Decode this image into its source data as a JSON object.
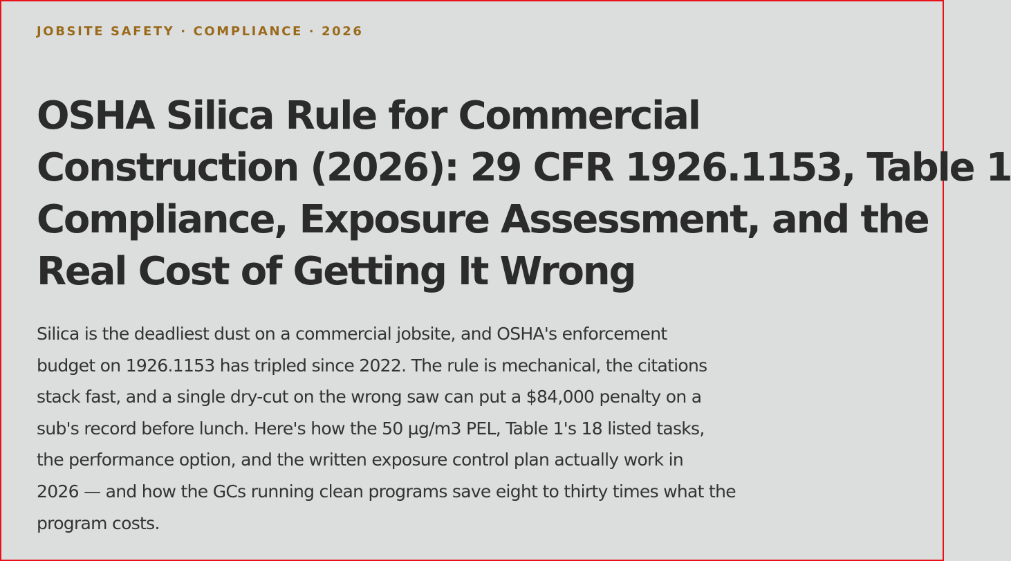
{
  "article": {
    "kicker": "JOBSITE SAFETY · COMPLIANCE · 2026",
    "title_lines": [
      "OSHA Silica Rule for Commercial",
      "Construction (2026): 29 CFR 1926.1153, Table 1",
      "Compliance, Exposure Assessment, and the",
      "Real Cost of Getting It Wrong"
    ],
    "lede_lines": [
      "Silica is the deadliest dust on a commercial jobsite, and OSHA's enforcement",
      "budget on 1926.1153 has tripled since 2022. The rule is mechanical, the citations",
      "stack fast, and a single dry-cut on the wrong saw can put a $84,000 penalty on a",
      "sub's record before lunch. Here's how the 50 µg/m3 PEL, Table 1's 18 listed tasks,",
      "the performance option, and the written exposure control plan actually work in",
      "2026 — and how the GCs running clean programs save eight to thirty times what the",
      "program costs."
    ]
  },
  "colors": {
    "background": "#dcdedd",
    "border": "#e8111a",
    "kicker": "#9a6a1c",
    "headline": "#2b2b2b",
    "body": "#333333"
  }
}
